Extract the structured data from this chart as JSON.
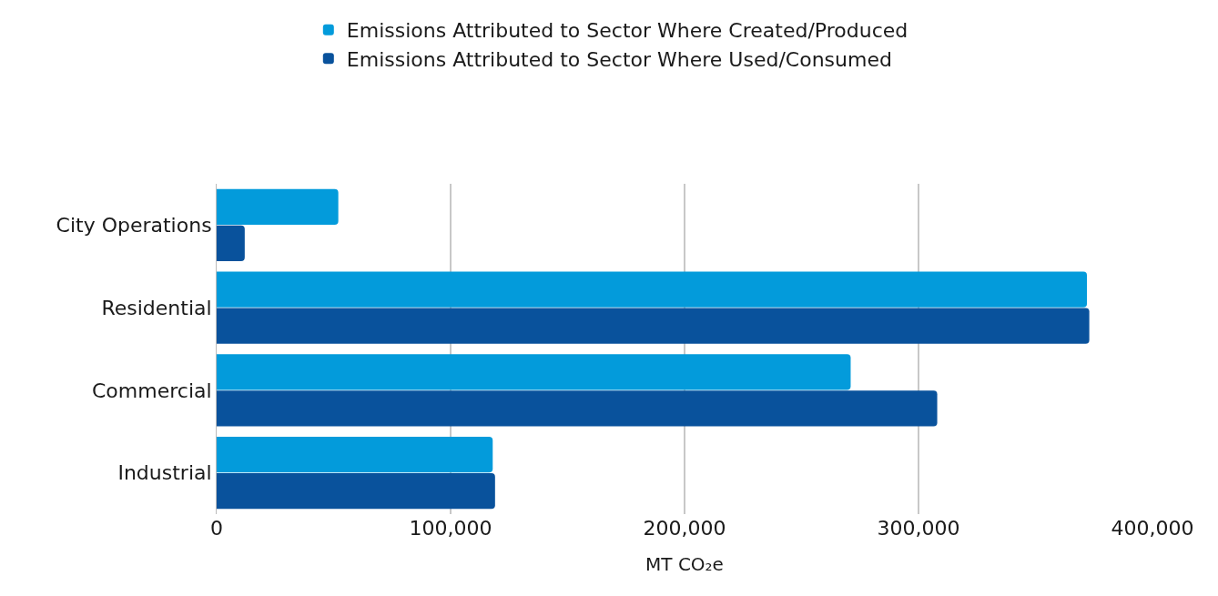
{
  "chart_data": {
    "type": "bar",
    "orientation": "horizontal",
    "xlabel": "MT CO₂e",
    "categories": [
      "City Operations",
      "Residential",
      "Commercial",
      "Industrial"
    ],
    "series": [
      {
        "name": "Emissions Attributed to Sector Where Created/Produced",
        "color": "#039bdb",
        "values": [
          52000,
          372000,
          271000,
          118000
        ]
      },
      {
        "name": "Emissions Attributed to Sector Where Used/Consumed",
        "color": "#09529c",
        "values": [
          12000,
          373000,
          308000,
          119000
        ]
      }
    ],
    "xlim": [
      0,
      400000
    ],
    "xticks": [
      {
        "value": 0,
        "label": "0"
      },
      {
        "value": 100000,
        "label": "100,000"
      },
      {
        "value": 200000,
        "label": "200,000"
      },
      {
        "value": 300000,
        "label": "300,000"
      },
      {
        "value": 400000,
        "label": "400,000"
      }
    ],
    "grid": "x",
    "legend": "top"
  }
}
